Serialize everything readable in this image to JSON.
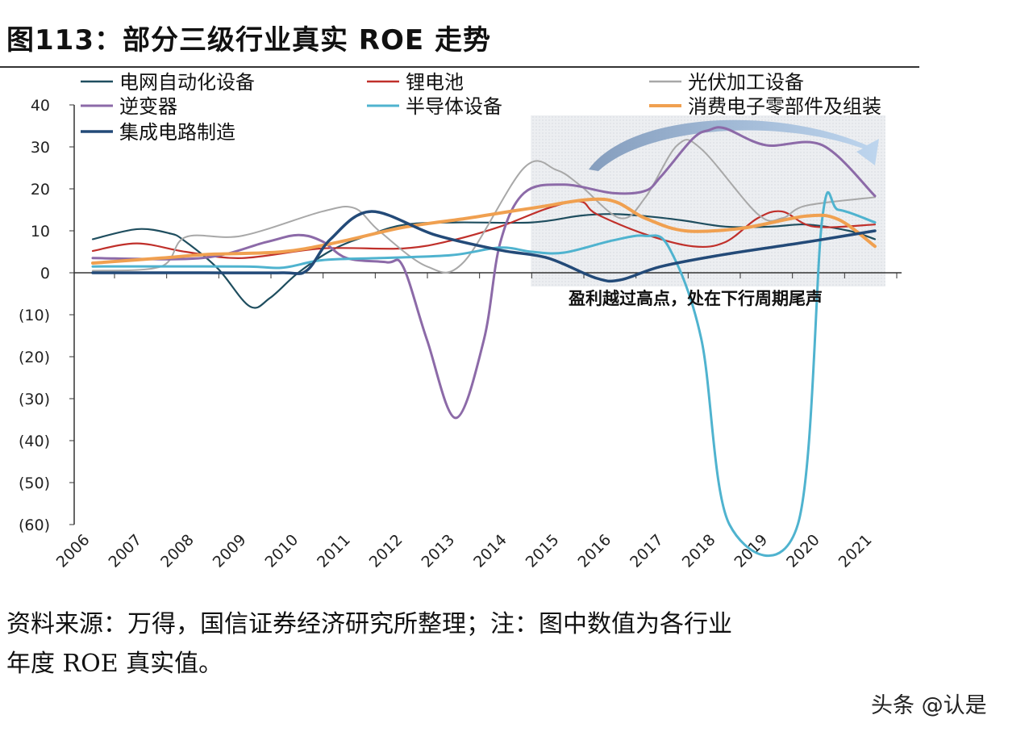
{
  "title": "图113：部分三级行业真实 ROE 走势",
  "footnote_line1": "资料来源：万得，国信证券经济研究所整理；注：图中数值为各行业",
  "footnote_line2": "年度 ROE 真实值。",
  "watermark": "头条 @认是",
  "chart_data": {
    "type": "line",
    "title": "",
    "xlabel": "",
    "ylabel": "",
    "ylim": [
      -60,
      40
    ],
    "xlim": [
      2006,
      2021
    ],
    "yticks": [
      40,
      30,
      20,
      10,
      0,
      -10,
      -20,
      -30,
      -40,
      -50,
      -60
    ],
    "ytick_labels": [
      "40",
      "30",
      "20",
      "10",
      "0",
      "(10)",
      "(20)",
      "(30)",
      "(40)",
      "(50)",
      "(60)"
    ],
    "xtick_labels": [
      "2006",
      "2007",
      "2008",
      "2009",
      "2010",
      "2011",
      "2012",
      "2013",
      "2014",
      "2015",
      "2016",
      "2017",
      "2018",
      "2019",
      "2020",
      "2021"
    ],
    "grid": false,
    "legend_placement": "top",
    "annotation": "盈利越过高点，处在下行周期尾声",
    "highlight_range": [
      2014.4,
      2021.2
    ],
    "series": [
      {
        "name": "电网自动化设备",
        "color": "#1f4e5f",
        "width": 2.2,
        "x": [
          2006,
          2006.85,
          2007.47,
          2007.75,
          2008.4,
          2009.01,
          2009.4,
          2009.94,
          2010.6,
          2011.3,
          2012,
          2013,
          2014.42,
          2015.35,
          2015.97,
          2016.6,
          2017.3,
          2018.13,
          2019,
          2019.68,
          2020.5,
          2021
        ],
        "y": [
          8,
          10.4,
          9.4,
          7.7,
          1,
          -8,
          -6,
          0,
          5.5,
          9,
          11.5,
          12,
          12,
          13.6,
          14,
          13.5,
          12.5,
          11,
          11,
          11.5,
          10,
          8
        ]
      },
      {
        "name": "锂电池",
        "color": "#c0302b",
        "width": 2.2,
        "x": [
          2006,
          2006.85,
          2007.78,
          2008.86,
          2010.4,
          2011.95,
          2012.88,
          2013.81,
          2014.73,
          2015.35,
          2015.66,
          2016.59,
          2017.51,
          2018.13,
          2018.75,
          2019.22,
          2019.83,
          2021
        ],
        "y": [
          5.2,
          7,
          5,
          3.5,
          5.8,
          5.8,
          7.7,
          11,
          15.4,
          17,
          14,
          9.2,
          6.3,
          7.3,
          13,
          14.6,
          11,
          11.5
        ]
      },
      {
        "name": "光伏加工设备",
        "color": "#a8a8a8",
        "width": 2,
        "x": [
          2006,
          2007.31,
          2007.78,
          2008.86,
          2010.4,
          2011.02,
          2011.49,
          2012.41,
          2013.11,
          2014.27,
          2014.89,
          2015.35,
          2016.12,
          2016.6,
          2017.21,
          2017.67,
          2018.75,
          2019.22,
          2019.68,
          2021
        ],
        "y": [
          0.5,
          1.5,
          8.5,
          8.8,
          14.6,
          15.4,
          10,
          1.5,
          2.5,
          25,
          24.5,
          20.8,
          13,
          18,
          30.4,
          29.5,
          14,
          13,
          16,
          18
        ]
      },
      {
        "name": "逆变器",
        "color": "#8c6aa8",
        "width": 3,
        "x": [
          2006,
          2008.09,
          2009.32,
          2009.94,
          2010.4,
          2010.87,
          2011.64,
          2011.95,
          2012.41,
          2012.96,
          2013.5,
          2013.81,
          2014.27,
          2015.04,
          2015.97,
          2016.59,
          2016.9,
          2017.51,
          2017.82,
          2018.13,
          2018.91,
          2019.99,
          2021
        ],
        "y": [
          3.5,
          3.5,
          7.3,
          9,
          7.5,
          3.5,
          2.5,
          1.5,
          -16,
          -34.6,
          -16,
          7,
          19,
          21,
          19,
          19.5,
          23,
          32,
          34,
          34.4,
          30.4,
          30.4,
          18.3
        ]
      },
      {
        "name": "半导体设备",
        "color": "#4fb3cf",
        "width": 3,
        "x": [
          2006,
          2008.86,
          2009.63,
          2010.4,
          2011.49,
          2012.88,
          2013.81,
          2014.42,
          2015.04,
          2015.97,
          2016.59,
          2017.05,
          2017.67,
          2018.21,
          2019.52,
          2019.99,
          2020.3,
          2021
        ],
        "y": [
          1.5,
          1.5,
          1.2,
          3,
          3.5,
          4.2,
          6,
          5,
          4.8,
          7.7,
          8.8,
          6,
          -15.8,
          -60,
          -60,
          13,
          15,
          12
        ]
      },
      {
        "name": "消费电子零部件及组装",
        "color": "#f0a050",
        "width": 4,
        "x": [
          2006,
          2007.31,
          2008.24,
          2009.63,
          2010.71,
          2011.95,
          2013.19,
          2014.42,
          2015.81,
          2016.59,
          2017.36,
          2018.44,
          2019.68,
          2020.3,
          2021
        ],
        "y": [
          2.3,
          3.5,
          4.4,
          5,
          7.3,
          10.8,
          13,
          15.4,
          17.5,
          13,
          10,
          10.6,
          13.5,
          12.7,
          6.3
        ]
      },
      {
        "name": "集成电路制造",
        "color": "#234a78",
        "width": 3.5,
        "x": [
          2006,
          2008,
          2009.63,
          2010.1,
          2010.56,
          2011.33,
          2012.57,
          2013.81,
          2014.73,
          2015.66,
          2016.12,
          2016.9,
          2018.13,
          2019.68,
          2021
        ],
        "y": [
          0,
          0,
          0,
          0.5,
          8,
          14.6,
          9,
          5.4,
          3.5,
          -1.3,
          -1.7,
          1.5,
          4.4,
          7.3,
          10
        ]
      }
    ]
  }
}
